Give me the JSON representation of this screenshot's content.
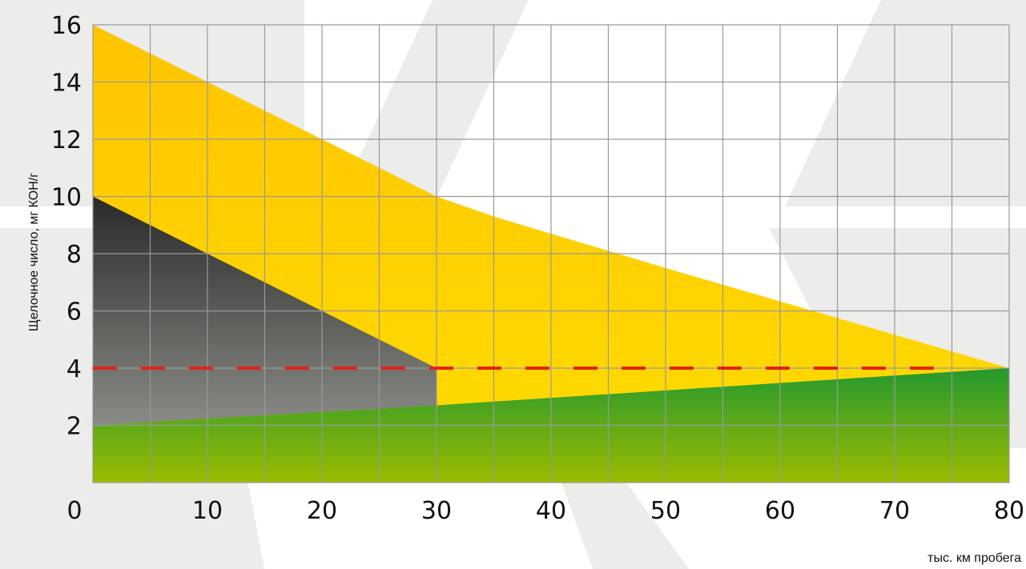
{
  "chart_data": {
    "type": "area",
    "xlabel": "тыс. км пробега",
    "ylabel": "Щелочное число, мг КОН/г",
    "xlim": [
      0,
      80
    ],
    "ylim": [
      0,
      16
    ],
    "x_ticks": [
      0,
      10,
      20,
      30,
      40,
      50,
      60,
      70,
      80
    ],
    "y_ticks": [
      2,
      4,
      6,
      8,
      10,
      12,
      14,
      16
    ],
    "grid": true,
    "series": [
      {
        "color": "#FFD500",
        "points": [
          [
            0,
            16
          ],
          [
            10,
            14
          ],
          [
            20,
            12
          ],
          [
            25,
            11
          ],
          [
            30,
            10
          ],
          [
            35,
            9.3
          ],
          [
            50,
            7.5
          ],
          [
            80,
            4
          ]
        ]
      },
      {
        "color": "#4A4A48",
        "points": [
          [
            0,
            10
          ],
          [
            30,
            4
          ],
          [
            30,
            2.7
          ],
          [
            0,
            2
          ]
        ]
      },
      {
        "color": "#6BAA1E",
        "points": [
          [
            0,
            2
          ],
          [
            30,
            2.7
          ],
          [
            80,
            4
          ]
        ]
      }
    ],
    "threshold": {
      "y": 4,
      "x_start": 0,
      "x_end": 75,
      "color": "#E2231A",
      "style": "dashed"
    }
  }
}
